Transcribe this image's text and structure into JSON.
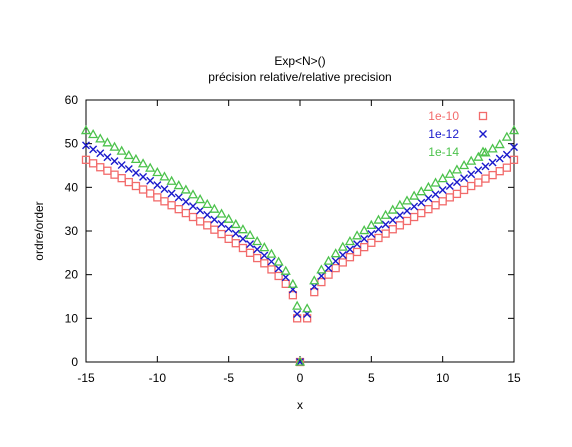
{
  "chart_data": {
    "type": "scatter",
    "title": "Exp<N>()",
    "subtitle": "précision relative/relative precision",
    "xlabel": "x",
    "ylabel": "ordre/order",
    "xlim": [
      -15,
      15
    ],
    "ylim": [
      0,
      60
    ],
    "xticks": [
      -15,
      -10,
      -5,
      0,
      5,
      10,
      15
    ],
    "yticks": [
      0,
      10,
      20,
      30,
      40,
      50,
      60
    ],
    "grid": false,
    "legend_position": "top-right",
    "series": [
      {
        "name": "1e-10",
        "color": "#f26b6b",
        "marker": "square",
        "x": [
          -15,
          -14.5,
          -14,
          -13.5,
          -13,
          -12.5,
          -12,
          -11.5,
          -11,
          -10.5,
          -10,
          -9.5,
          -9,
          -8.5,
          -8,
          -7.5,
          -7,
          -6.5,
          -6,
          -5.5,
          -5,
          -4.5,
          -4,
          -3.5,
          -3,
          -2.5,
          -2,
          -1.5,
          -1,
          -0.5,
          0,
          0.5,
          1,
          1.5,
          2,
          2.5,
          3,
          3.5,
          4,
          4.5,
          5,
          5.5,
          6,
          6.5,
          7,
          7.5,
          8,
          8.5,
          9,
          9.5,
          10,
          10.5,
          11,
          11.5,
          12,
          12.5,
          13,
          13.5,
          14,
          14.5,
          15
        ],
        "y": [
          46.3,
          45.5,
          44.6,
          43.8,
          42.9,
          42.1,
          41.2,
          40.3,
          39.5,
          38.6,
          37.7,
          36.8,
          35.9,
          35.0,
          34.1,
          33.2,
          32.2,
          31.3,
          30.3,
          29.3,
          28.2,
          27.2,
          26.1,
          25.0,
          23.8,
          22.6,
          21.2,
          19.7,
          17.9,
          15.3,
          0,
          10.0,
          16.0,
          18.3,
          20.0,
          21.5,
          22.8,
          24.0,
          25.2,
          26.3,
          27.3,
          28.4,
          29.4,
          30.4,
          31.3,
          32.3,
          33.2,
          34.1,
          35.0,
          35.9,
          36.8,
          37.7,
          38.5,
          39.4,
          40.3,
          41.1,
          42.0,
          42.8,
          43.7,
          44.5,
          46.3
        ],
        "extra_points": [
          {
            "x": -0.2,
            "y": 10.0
          }
        ]
      },
      {
        "name": "1e-12",
        "color": "#1a1acc",
        "marker": "x",
        "x": [
          -15,
          -14.5,
          -14,
          -13.5,
          -13,
          -12.5,
          -12,
          -11.5,
          -11,
          -10.5,
          -10,
          -9.5,
          -9,
          -8.5,
          -8,
          -7.5,
          -7,
          -6.5,
          -6,
          -5.5,
          -5,
          -4.5,
          -4,
          -3.5,
          -3,
          -2.5,
          -2,
          -1.5,
          -1,
          -0.5,
          0,
          0.5,
          1,
          1.5,
          2,
          2.5,
          3,
          3.5,
          4,
          4.5,
          5,
          5.5,
          6,
          6.5,
          7,
          7.5,
          8,
          8.5,
          9,
          9.5,
          10,
          10.5,
          11,
          11.5,
          12,
          12.5,
          13,
          13.5,
          14,
          14.5,
          15
        ],
        "y": [
          49.6,
          48.7,
          47.8,
          46.9,
          46.0,
          45.1,
          44.2,
          43.3,
          42.4,
          41.5,
          40.5,
          39.6,
          38.6,
          37.7,
          36.7,
          35.7,
          34.7,
          33.7,
          32.6,
          31.6,
          30.5,
          29.4,
          28.2,
          27.0,
          25.8,
          24.4,
          23.0,
          21.4,
          19.4,
          16.6,
          0,
          11.0,
          17.3,
          19.7,
          21.5,
          23.1,
          24.5,
          25.8,
          27.0,
          28.2,
          29.3,
          30.4,
          31.5,
          32.5,
          33.6,
          34.6,
          35.6,
          36.5,
          37.5,
          38.4,
          39.4,
          40.3,
          41.2,
          42.1,
          43.0,
          43.9,
          44.8,
          45.7,
          46.6,
          47.5,
          49.2
        ],
        "extra_points": [
          {
            "x": -0.2,
            "y": 11.0
          }
        ]
      },
      {
        "name": "1e-14",
        "color": "#4cc24c",
        "marker": "triangle",
        "x": [
          -15,
          -14.5,
          -14,
          -13.5,
          -13,
          -12.5,
          -12,
          -11.5,
          -11,
          -10.5,
          -10,
          -9.5,
          -9,
          -8.5,
          -8,
          -7.5,
          -7,
          -6.5,
          -6,
          -5.5,
          -5,
          -4.5,
          -4,
          -3.5,
          -3,
          -2.5,
          -2,
          -1.5,
          -1,
          -0.5,
          0,
          0.5,
          1,
          1.5,
          2,
          2.5,
          3,
          3.5,
          4,
          4.5,
          5,
          5.5,
          6,
          6.5,
          7,
          7.5,
          8,
          8.5,
          9,
          9.5,
          10,
          10.5,
          11,
          11.5,
          12,
          12.5,
          13,
          13.5,
          14,
          14.5,
          15
        ],
        "y": [
          53.0,
          52.1,
          51.1,
          50.2,
          49.2,
          48.3,
          47.3,
          46.4,
          45.4,
          44.4,
          43.4,
          42.4,
          41.4,
          40.4,
          39.4,
          38.3,
          37.2,
          36.1,
          35.0,
          33.9,
          32.7,
          31.5,
          30.3,
          29.0,
          27.6,
          26.2,
          24.7,
          22.9,
          20.8,
          17.8,
          0,
          12.2,
          18.6,
          21.1,
          23.1,
          24.8,
          26.3,
          27.6,
          28.9,
          30.1,
          31.3,
          32.5,
          33.6,
          34.8,
          35.9,
          36.9,
          38.0,
          39.0,
          40.0,
          41.0,
          42.0,
          43.0,
          44.0,
          45.0,
          46.0,
          46.9,
          47.9,
          48.8,
          49.8,
          51.5,
          53.0
        ],
        "extra_points": [
          {
            "x": -0.2,
            "y": 12.8
          }
        ]
      }
    ]
  }
}
